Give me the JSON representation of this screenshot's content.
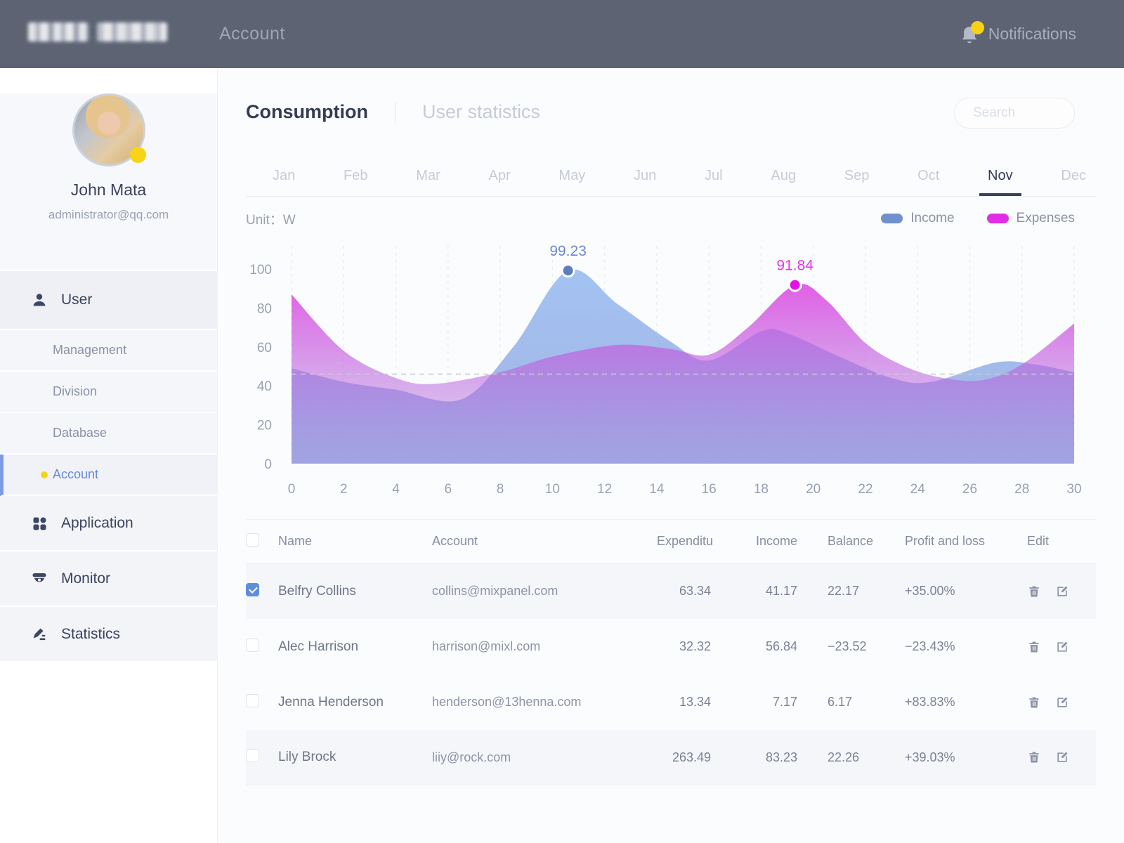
{
  "topbar": {
    "title": "Account",
    "notifications_label": "Notifications",
    "badge_color": "#F6D114"
  },
  "sidebar": {
    "user": {
      "name": "John Mata",
      "email": "administrator@qq.com"
    },
    "nav_user": {
      "label": "User",
      "children": [
        "Management",
        "Division",
        "Database",
        "Account"
      ],
      "active_child": "Account"
    },
    "nav_items": [
      "Application",
      "Monitor",
      "Statistics"
    ]
  },
  "main": {
    "tabs": {
      "items": [
        "Consumption",
        "User statistics"
      ],
      "active_index": 0
    },
    "search": {
      "placeholder": "Search"
    },
    "months": {
      "items": [
        "Jan",
        "Feb",
        "Mar",
        "Apr",
        "May",
        "Jun",
        "Jul",
        "Aug",
        "Sep",
        "Oct",
        "Nov",
        "Dec"
      ],
      "active_index": 10
    }
  },
  "chart_data": {
    "type": "area",
    "unit_label": "Unit：W",
    "legend": [
      {
        "name": "Income",
        "color": "#7191CE"
      },
      {
        "name": "Expenses",
        "color": "#E02FE2"
      }
    ],
    "legend_position": "top-right",
    "xlim": [
      0,
      30
    ],
    "ylim": [
      0,
      100
    ],
    "x_ticks": [
      0,
      2,
      4,
      6,
      8,
      10,
      12,
      14,
      16,
      18,
      20,
      22,
      24,
      26,
      28,
      30
    ],
    "y_ticks": [
      0,
      20,
      40,
      60,
      80,
      100
    ],
    "grid": "vertical-dashed",
    "reference_line_y": 46,
    "series": [
      {
        "name": "Income",
        "dot_color": "#5C7EC0",
        "label_color": "#6F89C8",
        "gradient_top": "#9EC0F2",
        "gradient_bottom": "#8FA3DE",
        "points": [
          [
            0,
            49
          ],
          [
            2,
            42
          ],
          [
            4,
            38
          ],
          [
            6.5,
            33
          ],
          [
            8.5,
            60
          ],
          [
            10.6,
            99.23
          ],
          [
            12.5,
            82
          ],
          [
            14.5,
            63
          ],
          [
            16,
            53
          ],
          [
            18,
            68
          ],
          [
            19,
            67
          ],
          [
            21,
            55
          ],
          [
            23,
            44
          ],
          [
            24.5,
            42
          ],
          [
            27,
            52
          ],
          [
            28.5,
            51
          ],
          [
            30,
            47
          ]
        ],
        "label_point": {
          "x": 10.6,
          "y": 99.23,
          "label": "99.23"
        }
      },
      {
        "name": "Expenses",
        "dot_color": "#E312E9",
        "label_color": "#E335E5",
        "gradient_top": "#DC43E1",
        "gradient_bottom": "#9A7BD8",
        "points": [
          [
            0,
            87
          ],
          [
            2,
            58
          ],
          [
            4,
            44
          ],
          [
            5.5,
            41
          ],
          [
            8,
            47
          ],
          [
            10,
            55
          ],
          [
            12.5,
            61
          ],
          [
            14.5,
            59
          ],
          [
            16,
            56
          ],
          [
            17.5,
            70
          ],
          [
            19.3,
            91.84
          ],
          [
            20.5,
            84
          ],
          [
            22,
            62
          ],
          [
            23.5,
            50
          ],
          [
            25,
            44
          ],
          [
            26.5,
            43
          ],
          [
            28,
            51
          ],
          [
            30,
            72
          ]
        ],
        "label_point": {
          "x": 19.3,
          "y": 91.84,
          "label": "91.84"
        }
      }
    ]
  },
  "table": {
    "columns": [
      "Name",
      "Account",
      "Expenditu",
      "Income",
      "Balance",
      "Profit and loss",
      "Edit"
    ],
    "rows": [
      {
        "checked": true,
        "shaded": true,
        "name": "Belfry Collins",
        "account": "collins@mixpanel.com",
        "expenditure": "63.34",
        "income": "41.17",
        "balance": "22.17",
        "profit": "+35.00%"
      },
      {
        "checked": false,
        "shaded": false,
        "name": "Alec Harrison",
        "account": "harrison@mixl.com",
        "expenditure": "32.32",
        "income": "56.84",
        "balance": "−23.52",
        "profit": "−23.43%"
      },
      {
        "checked": false,
        "shaded": false,
        "name": "Jenna Henderson",
        "account": "henderson@13henna.com",
        "expenditure": "13.34",
        "income": "7.17",
        "balance": "6.17",
        "profit": "+83.83%"
      },
      {
        "checked": false,
        "shaded": true,
        "name": "Lily Brock",
        "account": "liiy@rock.com",
        "expenditure": "263.49",
        "income": "83.23",
        "balance": "22.26",
        "profit": "+39.03%"
      }
    ]
  }
}
